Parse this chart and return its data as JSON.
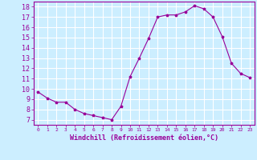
{
  "x": [
    0,
    1,
    2,
    3,
    4,
    5,
    6,
    7,
    8,
    9,
    10,
    11,
    12,
    13,
    14,
    15,
    16,
    17,
    18,
    19,
    20,
    21,
    22,
    23
  ],
  "y": [
    9.7,
    9.1,
    8.7,
    8.7,
    8.0,
    7.6,
    7.4,
    7.2,
    7.0,
    8.3,
    11.2,
    13.0,
    14.9,
    17.0,
    17.2,
    17.2,
    17.5,
    18.1,
    17.8,
    17.0,
    15.1,
    12.5,
    11.5,
    11.1
  ],
  "xlim": [
    -0.5,
    23.5
  ],
  "ylim": [
    6.5,
    18.5
  ],
  "yticks": [
    7,
    8,
    9,
    10,
    11,
    12,
    13,
    14,
    15,
    16,
    17,
    18
  ],
  "xticks": [
    0,
    1,
    2,
    3,
    4,
    5,
    6,
    7,
    8,
    9,
    10,
    11,
    12,
    13,
    14,
    15,
    16,
    17,
    18,
    19,
    20,
    21,
    22,
    23
  ],
  "xlabel": "Windchill (Refroidissement éolien,°C)",
  "line_color": "#990099",
  "marker": "*",
  "bg_color": "#cceeff",
  "grid_color": "#ffffff",
  "label_color": "#990099",
  "tick_color": "#990099",
  "xlabel_fontsize": 6,
  "ytick_fontsize": 6,
  "xtick_fontsize": 4.5
}
